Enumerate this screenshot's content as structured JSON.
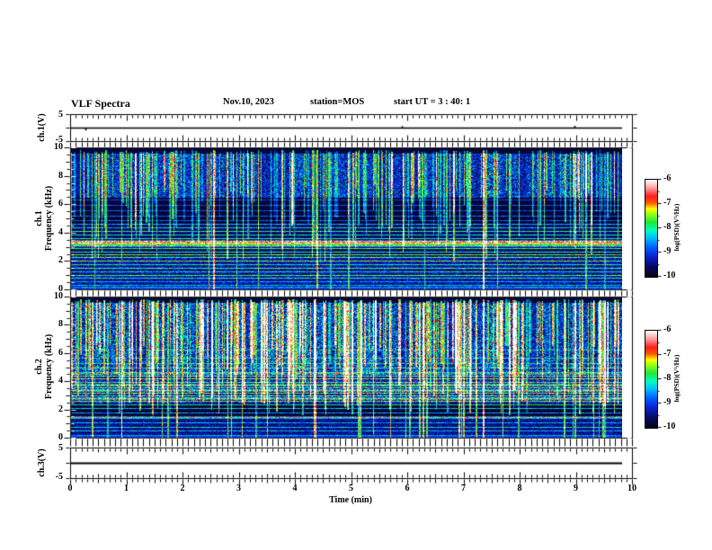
{
  "header": {
    "title": "VLF Spectra",
    "date": "Nov.10, 2023",
    "station": "station=MOS",
    "start_ut": "start UT =  3 : 40: 1"
  },
  "axis_titles": {
    "ch1_volt": "ch.1(V)",
    "ch1_freq": "ch.1\nFrequency (kHz)",
    "ch2_freq": "ch.2\nFrequency (kHz)",
    "ch3_volt": "ch.3(V)",
    "time": "Time (min)"
  },
  "chart_data": {
    "type": "heatmap",
    "title": "VLF Spectra, Nov.10 2023, station MOS, start UT 3:40:1",
    "time": {
      "label": "Time (min)",
      "range": [
        0,
        10
      ],
      "tick_labels": [
        "0",
        "1",
        "2",
        "3",
        "4",
        "5",
        "6",
        "7",
        "8",
        "9",
        "10"
      ],
      "minor_step": 0.1,
      "data_end": 9.83
    },
    "volt_axis": {
      "tick_labels": [
        "5",
        "-5"
      ],
      "range": [
        -5,
        5
      ]
    },
    "freq_axis": {
      "label": "Frequency (kHz)",
      "tick_labels": [
        "10",
        "8",
        "6",
        "4",
        "2",
        "0"
      ],
      "range": [
        0,
        10
      ],
      "minor_step": 0.5
    },
    "colorbar": {
      "label": "log(PSD)(V²/Hz)",
      "tick_labels": [
        "-6",
        "-7",
        "-8",
        "-9",
        "-10"
      ],
      "range": [
        -10,
        -6
      ]
    },
    "colormap": {
      "stops": [
        {
          "t": 0.0,
          "rgb": [
            4,
            4,
            20
          ]
        },
        {
          "t": 0.1,
          "rgb": [
            8,
            10,
            90
          ]
        },
        {
          "t": 0.2,
          "rgb": [
            10,
            30,
            200
          ]
        },
        {
          "t": 0.3,
          "rgb": [
            0,
            90,
            255
          ]
        },
        {
          "t": 0.4,
          "rgb": [
            0,
            190,
            255
          ]
        },
        {
          "t": 0.48,
          "rgb": [
            0,
            255,
            190
          ]
        },
        {
          "t": 0.56,
          "rgb": [
            30,
            230,
            60
          ]
        },
        {
          "t": 0.64,
          "rgb": [
            140,
            255,
            20
          ]
        },
        {
          "t": 0.7,
          "rgb": [
            255,
            255,
            0
          ]
        },
        {
          "t": 0.76,
          "rgb": [
            255,
            90,
            0
          ]
        },
        {
          "t": 0.83,
          "rgb": [
            255,
            30,
            30
          ]
        },
        {
          "t": 0.91,
          "rgb": [
            255,
            150,
            150
          ]
        },
        {
          "t": 1.0,
          "rgb": [
            255,
            255,
            255
          ]
        }
      ]
    },
    "charts": [
      {
        "kind": "waveform",
        "channel": "ch.1(V)",
        "value_volts": 0,
        "blips": [
          {
            "t": 0.27,
            "dv": -0.9
          },
          {
            "t": 5.9,
            "dv": 0.7
          },
          {
            "t": 8.98,
            "dv": 0.8
          }
        ]
      },
      {
        "kind": "spectrogram",
        "channel": "ch.1",
        "seed": 1234567,
        "base": 0.05,
        "bands": [
          {
            "f": [
              6.6,
              9.6
            ],
            "speckle": 0.34,
            "clumpy": true
          },
          {
            "f": [
              0.2,
              2.3
            ],
            "speckle": 0.2
          },
          {
            "f": [
              2.3,
              4.6
            ],
            "speckle": 0.1
          },
          {
            "f": [
              0.0,
              0.18
            ],
            "flat": 0.22
          }
        ],
        "hlines": [
          {
            "f": 0.35,
            "s": 0.3,
            "w": 0
          },
          {
            "f": 0.6,
            "s": 0.25,
            "w": 0
          },
          {
            "f": 0.85,
            "s": 0.4,
            "w": 0
          },
          {
            "f": 1.05,
            "s": 0.5,
            "w": 0
          },
          {
            "f": 1.3,
            "s": 0.35,
            "w": 0
          },
          {
            "f": 1.55,
            "s": 0.5,
            "w": 0
          },
          {
            "f": 1.8,
            "s": 0.4,
            "w": 0
          },
          {
            "f": 2.05,
            "s": 0.55,
            "w": 0
          },
          {
            "f": 2.3,
            "s": 0.45,
            "w": 0
          },
          {
            "f": 2.5,
            "s": 0.6,
            "w": 0
          },
          {
            "f": 2.7,
            "s": 0.5,
            "w": 0
          },
          {
            "f": 2.9,
            "s": 0.55,
            "w": 0
          },
          {
            "f": 3.1,
            "s": 0.75,
            "w": 1
          },
          {
            "f": 3.3,
            "s": 0.95,
            "w": 2
          },
          {
            "f": 3.45,
            "s": 0.7,
            "w": 1
          },
          {
            "f": 3.65,
            "s": 0.5,
            "w": 0
          },
          {
            "f": 3.9,
            "s": 0.45,
            "w": 0
          },
          {
            "f": 4.15,
            "s": 0.5,
            "w": 0
          },
          {
            "f": 4.4,
            "s": 0.4,
            "w": 0
          },
          {
            "f": 4.65,
            "s": 0.35,
            "w": 0
          },
          {
            "f": 4.9,
            "s": 0.3,
            "w": 0
          },
          {
            "f": 5.2,
            "s": 0.3,
            "w": 0
          },
          {
            "f": 5.6,
            "s": 0.28,
            "w": 0
          },
          {
            "f": 6.0,
            "s": 0.28,
            "w": 0
          },
          {
            "f": 6.4,
            "s": 0.26,
            "w": 0
          }
        ],
        "streaks": {
          "count": 230,
          "fmin": [
            2.0,
            7.5
          ],
          "intensity": [
            0.22,
            0.62
          ],
          "wide_frac": 0.25,
          "full_frac": 0.1
        },
        "strong_streaks": [
          {
            "t": 2.55,
            "intensity": 0.8
          },
          {
            "t": 4.38,
            "intensity": 0.58
          },
          {
            "t": 7.35,
            "intensity": 0.85
          }
        ]
      },
      {
        "kind": "spectrogram",
        "channel": "ch.2",
        "seed": 7654321,
        "base": 0.05,
        "bands": [
          {
            "f": [
              4.6,
              9.6
            ],
            "speckle": 0.42,
            "clumpy": true
          },
          {
            "f": [
              2.5,
              4.6
            ],
            "speckle": 0.26
          },
          {
            "f": [
              0.2,
              1.4
            ],
            "speckle": 0.16
          },
          {
            "f": [
              0.0,
              0.18
            ],
            "flat": 0.22
          }
        ],
        "hlines": [
          {
            "f": 0.5,
            "s": 0.3,
            "w": 0
          },
          {
            "f": 0.8,
            "s": 0.35,
            "w": 0
          },
          {
            "f": 1.1,
            "s": 0.3,
            "w": 0
          },
          {
            "f": 1.5,
            "s": 0.85,
            "w": 1
          },
          {
            "f": 1.8,
            "s": 0.4,
            "w": 0
          },
          {
            "f": 2.1,
            "s": 0.45,
            "w": 0
          },
          {
            "f": 2.35,
            "s": 0.55,
            "w": 0
          },
          {
            "f": 2.6,
            "s": 0.6,
            "w": 0
          },
          {
            "f": 2.8,
            "s": 0.65,
            "w": 1
          },
          {
            "f": 3.0,
            "s": 0.55,
            "w": 0
          },
          {
            "f": 3.2,
            "s": 0.6,
            "w": 0
          },
          {
            "f": 3.4,
            "s": 0.65,
            "w": 1
          },
          {
            "f": 3.6,
            "s": 0.55,
            "w": 0
          },
          {
            "f": 3.8,
            "s": 0.6,
            "w": 1
          },
          {
            "f": 4.0,
            "s": 0.55,
            "w": 0
          },
          {
            "f": 4.2,
            "s": 0.6,
            "w": 0
          },
          {
            "f": 4.45,
            "s": 0.5,
            "w": 0
          },
          {
            "f": 4.7,
            "s": 0.4,
            "w": 0
          },
          {
            "f": 5.0,
            "s": 0.35,
            "w": 0
          },
          {
            "f": 5.3,
            "s": 0.3,
            "w": 0
          },
          {
            "f": 5.7,
            "s": 0.28,
            "w": 0
          },
          {
            "f": 6.3,
            "s": 0.26,
            "w": 0
          }
        ],
        "streaks": {
          "count": 300,
          "fmin": [
            1.6,
            6.8
          ],
          "intensity": [
            0.3,
            0.8
          ],
          "wide_frac": 0.45,
          "full_frac": 0.12
        },
        "strong_streaks": [
          {
            "t": 4.35,
            "intensity": 0.78
          },
          {
            "t": 7.35,
            "intensity": 0.85
          }
        ]
      },
      {
        "kind": "waveform",
        "channel": "ch.3(V)",
        "value_volts": 0,
        "blips": []
      }
    ]
  }
}
